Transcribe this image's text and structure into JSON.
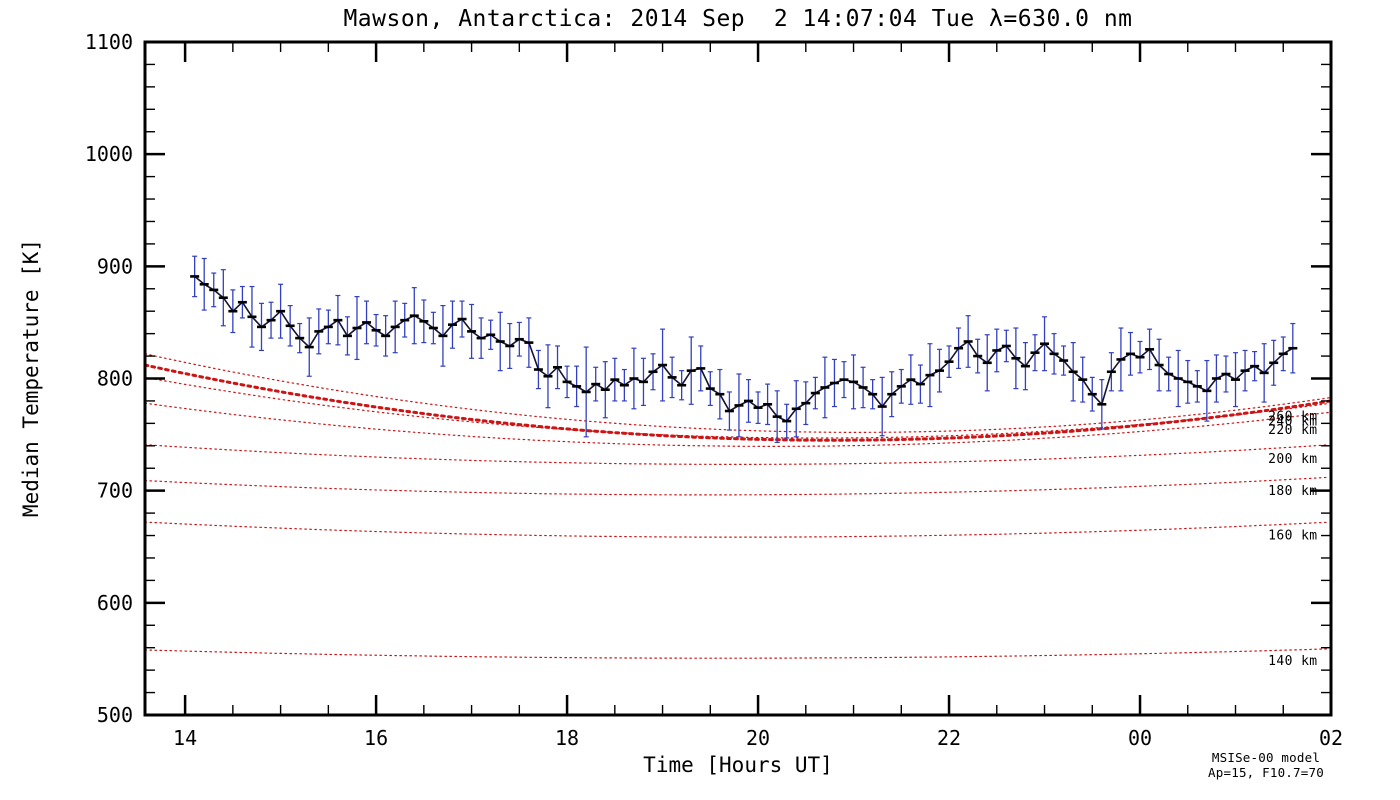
{
  "chart_data": {
    "type": "line",
    "title": "Mawson, Antarctica: 2014 Sep  2 14:07:04 Tue λ=630.0 nm",
    "xlabel": "Time [Hours UT]",
    "ylabel": "Median Temperature [K]",
    "xrange": [
      13.58,
      26.0
    ],
    "yrange": [
      500,
      1100
    ],
    "x_tick_values": [
      14,
      16,
      18,
      20,
      22,
      24,
      26
    ],
    "x_tick_labels": [
      "14",
      "16",
      "18",
      "20",
      "22",
      "00",
      "02"
    ],
    "x_minor_step": 0.5,
    "y_tick_values": [
      500,
      600,
      700,
      800,
      900,
      1000,
      1100
    ],
    "y_tick_labels": [
      "500",
      "600",
      "700",
      "800",
      "900",
      "1000",
      "1100"
    ],
    "y_minor_step": 20,
    "grid": false,
    "legend": "none",
    "colors": {
      "frame": "#000000",
      "data_line": "#14142e",
      "error_bar": "#3240c0",
      "marker": "#000000",
      "model": "#cc1414"
    },
    "series": {
      "name": "Median temperature (630.0 nm)",
      "x_start": 14.1,
      "x_step": 0.1,
      "values": [
        891,
        884,
        879,
        872,
        860,
        868,
        855,
        846,
        852,
        860,
        847,
        836,
        828,
        842,
        846,
        852,
        838,
        845,
        850,
        843,
        838,
        846,
        852,
        856,
        851,
        845,
        838,
        848,
        853,
        842,
        836,
        839,
        833,
        829,
        835,
        832,
        808,
        802,
        810,
        797,
        793,
        788,
        795,
        790,
        799,
        794,
        800,
        797,
        806,
        812,
        801,
        794,
        807,
        809,
        791,
        786,
        771,
        776,
        780,
        774,
        777,
        766,
        762,
        773,
        778,
        787,
        792,
        796,
        799,
        797,
        792,
        786,
        775,
        786,
        793,
        799,
        795,
        803,
        807,
        815,
        827,
        833,
        820,
        814,
        825,
        829,
        818,
        811,
        823,
        831,
        822,
        816,
        806,
        799,
        786,
        777,
        806,
        817,
        822,
        819,
        826,
        812,
        804,
        800,
        797,
        793,
        789,
        800,
        804,
        799,
        807,
        811,
        805,
        814,
        822,
        827
      ],
      "errors": [
        18,
        23,
        15,
        25,
        19,
        14,
        27,
        21,
        16,
        24,
        18,
        13,
        26,
        20,
        15,
        22,
        17,
        28,
        19,
        14,
        18,
        23,
        15,
        25,
        19,
        14,
        27,
        21,
        16,
        24,
        18,
        13,
        26,
        20,
        15,
        22,
        17,
        28,
        19,
        14,
        18,
        40,
        15,
        25,
        19,
        14,
        27,
        21,
        16,
        32,
        18,
        13,
        30,
        20,
        15,
        22,
        17,
        28,
        19,
        14,
        18,
        23,
        15,
        25,
        19,
        14,
        27,
        21,
        16,
        24,
        18,
        13,
        26,
        20,
        15,
        22,
        17,
        28,
        19,
        14,
        18,
        23,
        15,
        25,
        19,
        14,
        27,
        21,
        16,
        24,
        18,
        13,
        26,
        20,
        15,
        22,
        17,
        28,
        19,
        14,
        18,
        23,
        15,
        25,
        19,
        14,
        27,
        21,
        16,
        24,
        18,
        13,
        26,
        20,
        15,
        22
      ]
    },
    "model": {
      "name": "MSISe-00 model",
      "annotations": [
        "MSISe-00 model",
        "Ap=15, F10.7=70"
      ],
      "t_min": 20.9,
      "label_time": 25.3,
      "curves": [
        {
          "label": "260 km",
          "start": 822,
          "min": 752,
          "end": 783,
          "thick": false,
          "labeled": true
        },
        {
          "label": "240 km",
          "start": 801,
          "min": 747,
          "end": 778,
          "thick": false,
          "labeled": true
        },
        {
          "label": "",
          "start": 812,
          "min": 745,
          "end": 780,
          "thick": true,
          "labeled": false
        },
        {
          "label": "220 km",
          "start": 778,
          "min": 740,
          "end": 770,
          "thick": false,
          "labeled": true
        },
        {
          "label": "200 km",
          "start": 741,
          "min": 724,
          "end": 741,
          "thick": false,
          "labeled": true
        },
        {
          "label": "180 km",
          "start": 709,
          "min": 697,
          "end": 712,
          "thick": false,
          "labeled": true
        },
        {
          "label": "160 km",
          "start": 672,
          "min": 659,
          "end": 672,
          "thick": false,
          "labeled": true
        },
        {
          "label": "140 km",
          "start": 558,
          "min": 551,
          "end": 559,
          "thick": false,
          "labeled": true
        }
      ]
    }
  }
}
